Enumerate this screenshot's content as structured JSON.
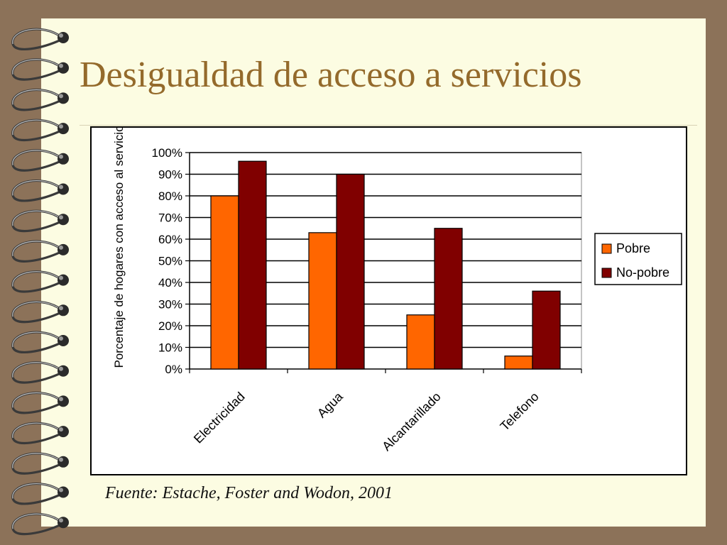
{
  "slide": {
    "title": "Desigualdad de acceso a servicios",
    "source": "Fuente: Estache, Foster and Wodon, 2001"
  },
  "colors": {
    "pobre": "#ff6600",
    "no_pobre": "#800000",
    "title": "#946a2b",
    "page": "#fcfce2",
    "frame": "#8c7259"
  },
  "chart_data": {
    "type": "bar",
    "title": "",
    "xlabel": "",
    "ylabel": "Porcentaje de hogares con acceso al servicio",
    "categories": [
      "Electricidad",
      "Agua",
      "Alcantarillado",
      "Telefono"
    ],
    "series": [
      {
        "name": "Pobre",
        "values": [
          80,
          63,
          25,
          6
        ]
      },
      {
        "name": "No-pobre",
        "values": [
          96,
          90,
          65,
          36
        ]
      }
    ],
    "ylim": [
      0,
      100
    ],
    "yticks": [
      "0%",
      "10%",
      "20%",
      "30%",
      "40%",
      "50%",
      "60%",
      "70%",
      "80%",
      "90%",
      "100%"
    ],
    "grid": true,
    "legend_position": "right"
  }
}
